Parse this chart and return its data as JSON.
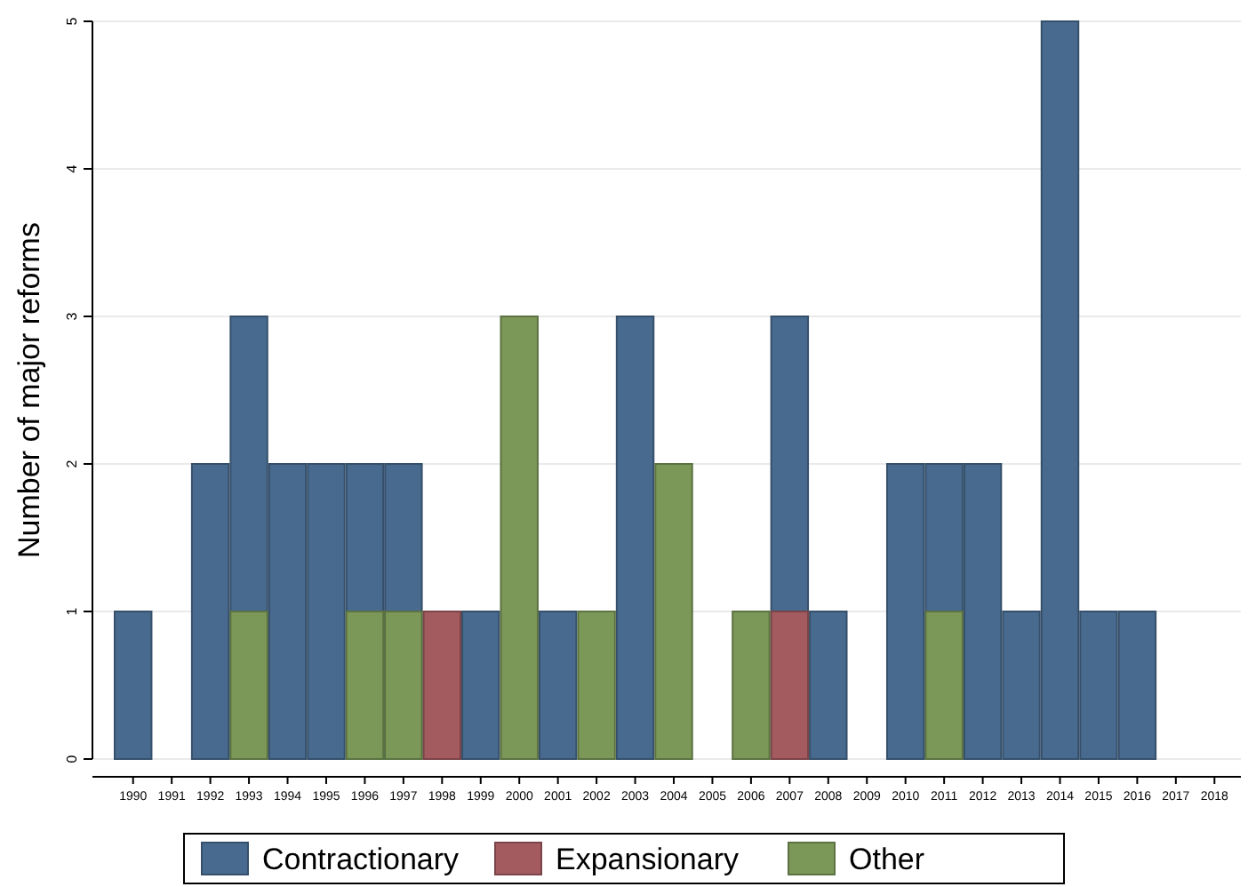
{
  "chart_data": {
    "type": "bar",
    "ylabel": "Number of major reforms",
    "categories": [
      "1990",
      "1991",
      "1992",
      "1993",
      "1994",
      "1995",
      "1996",
      "1997",
      "1998",
      "1999",
      "2000",
      "2001",
      "2002",
      "2003",
      "2004",
      "2005",
      "2006",
      "2007",
      "2008",
      "2009",
      "2010",
      "2011",
      "2012",
      "2013",
      "2014",
      "2015",
      "2016",
      "2017",
      "2018"
    ],
    "series": [
      {
        "name": "Contractionary",
        "color": "#486a8e",
        "values": [
          1,
          0,
          2,
          3,
          2,
          2,
          2,
          2,
          null,
          1,
          null,
          1,
          null,
          3,
          null,
          0,
          null,
          3,
          1,
          0,
          2,
          2,
          2,
          1,
          5,
          1,
          1,
          0,
          0
        ]
      },
      {
        "name": "Expansionary",
        "color": "#a45b60",
        "values": [
          null,
          null,
          null,
          null,
          null,
          null,
          null,
          null,
          1,
          null,
          null,
          null,
          null,
          null,
          null,
          null,
          null,
          1,
          null,
          null,
          null,
          null,
          null,
          null,
          null,
          null,
          null,
          null,
          null
        ]
      },
      {
        "name": "Other",
        "color": "#7b9858",
        "values": [
          null,
          null,
          null,
          1,
          null,
          null,
          1,
          1,
          null,
          null,
          3,
          null,
          1,
          null,
          2,
          null,
          1,
          null,
          null,
          null,
          null,
          1,
          null,
          null,
          null,
          null,
          null,
          null,
          null
        ]
      }
    ],
    "ylim": [
      0,
      5
    ],
    "yticks": [
      0,
      1,
      2,
      3,
      4,
      5
    ],
    "grid": "y",
    "legend": "bottom"
  }
}
